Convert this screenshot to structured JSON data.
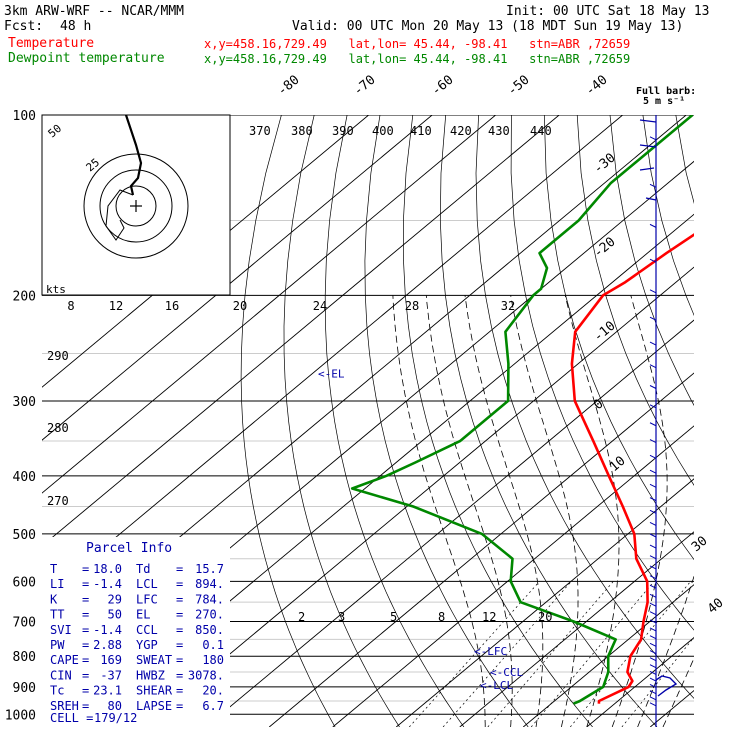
{
  "header": {
    "model": "3km ARW-WRF -- NCAR/MMM",
    "init": "Init: 00 UTC Sat 18 May 13",
    "fcst_label": "Fcst:",
    "fcst_value": "48 h",
    "valid": "Valid: 00 UTC Mon 20 May 13 (18 MDT Sun 19 May 13)",
    "temp_label": "Temperature",
    "dew_label": "Dewpoint temperature",
    "location": "x,y=458.16,729.49   lat,lon= 45.44, -98.41   stn=ABR ,72659"
  },
  "barb_legend": {
    "title": "Full barb:",
    "value": "5 m s⁻¹"
  },
  "parcel_info": {
    "title": "Parcel Info",
    "rows": [
      [
        "T",
        "18.0",
        "Td",
        "15.7"
      ],
      [
        "LI",
        "-1.4",
        "LCL",
        "894."
      ],
      [
        "K",
        "29",
        "LFC",
        "784."
      ],
      [
        "TT",
        "50",
        "EL",
        "270."
      ],
      [
        "SVI",
        "-1.4",
        "CCL",
        "850."
      ],
      [
        "PW",
        "2.88",
        "YGP",
        "0.1"
      ],
      [
        "CAPE",
        "169",
        "SWEAT",
        "180"
      ],
      [
        "CIN",
        "-37",
        "HWBZ",
        "3078."
      ],
      [
        "Tc",
        "23.1",
        "SHEAR",
        "20."
      ],
      [
        "SREH",
        "80",
        "LAPSE",
        "6.7"
      ]
    ],
    "cell_label": "CELL =",
    "cell_value": "179/12"
  },
  "chart_data": {
    "type": "line",
    "subtype": "skew-T log-p",
    "pressure_levels": [
      "100",
      "200",
      "300",
      "400",
      "500",
      "600",
      "700",
      "800",
      "900",
      "1000"
    ],
    "ylim": [
      1000,
      100
    ],
    "isotherm_labels": [
      "-80",
      "-70",
      "-60",
      "-50",
      "-40",
      "-30",
      "-20",
      "-10",
      "0",
      "10",
      "30",
      "40"
    ],
    "theta_labels": [
      "370",
      "380",
      "390",
      "400",
      "410",
      "420",
      "430",
      "440",
      "290",
      "280",
      "270"
    ],
    "mixing_ratio_labels": [
      "2",
      "3",
      "5",
      "8",
      "12",
      "20"
    ],
    "hodograph": {
      "unit_label": "kts",
      "speed_labels": [
        "8",
        "12",
        "16",
        "20",
        "24",
        "28",
        "32"
      ],
      "ring_labels": [
        "50",
        "25"
      ]
    },
    "level_markers": [
      {
        "label": "EL",
        "pressure": 270
      },
      {
        "label": "LFC",
        "pressure": 784
      },
      {
        "label": "CCL",
        "pressure": 850
      },
      {
        "label": "LCL",
        "pressure": 894
      }
    ],
    "series": [
      {
        "name": "Temperature",
        "color": "#ff0000",
        "points": [
          [
            100,
            -57
          ],
          [
            130,
            -55
          ],
          [
            150,
            -55.5
          ],
          [
            170,
            -57
          ],
          [
            190,
            -58
          ],
          [
            200,
            -59
          ],
          [
            230,
            -56.5
          ],
          [
            260,
            -51
          ],
          [
            300,
            -43.5
          ],
          [
            350,
            -33
          ],
          [
            400,
            -24
          ],
          [
            450,
            -16
          ],
          [
            500,
            -9
          ],
          [
            550,
            -4
          ],
          [
            600,
            2
          ],
          [
            650,
            6
          ],
          [
            700,
            9
          ],
          [
            750,
            12
          ],
          [
            800,
            13.5
          ],
          [
            850,
            16
          ],
          [
            880,
            18.5
          ],
          [
            900,
            19
          ],
          [
            950,
            17
          ],
          [
            960,
            17.5
          ]
        ]
      },
      {
        "name": "Dewpoint temperature",
        "color": "#008800",
        "points": [
          [
            100,
            -79
          ],
          [
            130,
            -79
          ],
          [
            150,
            -77
          ],
          [
            170,
            -77
          ],
          [
            180,
            -73
          ],
          [
            195,
            -70
          ],
          [
            200,
            -70
          ],
          [
            230,
            -67.5
          ],
          [
            260,
            -61
          ],
          [
            300,
            -54
          ],
          [
            350,
            -54
          ],
          [
            380,
            -57
          ],
          [
            400,
            -59
          ],
          [
            420,
            -62
          ],
          [
            450,
            -49
          ],
          [
            500,
            -33
          ],
          [
            550,
            -23.5
          ],
          [
            600,
            -19.5
          ],
          [
            650,
            -14
          ],
          [
            700,
            -2
          ],
          [
            750,
            8
          ],
          [
            800,
            10
          ],
          [
            850,
            13
          ],
          [
            900,
            15
          ],
          [
            950,
            14
          ],
          [
            960,
            13.5
          ]
        ]
      }
    ]
  }
}
